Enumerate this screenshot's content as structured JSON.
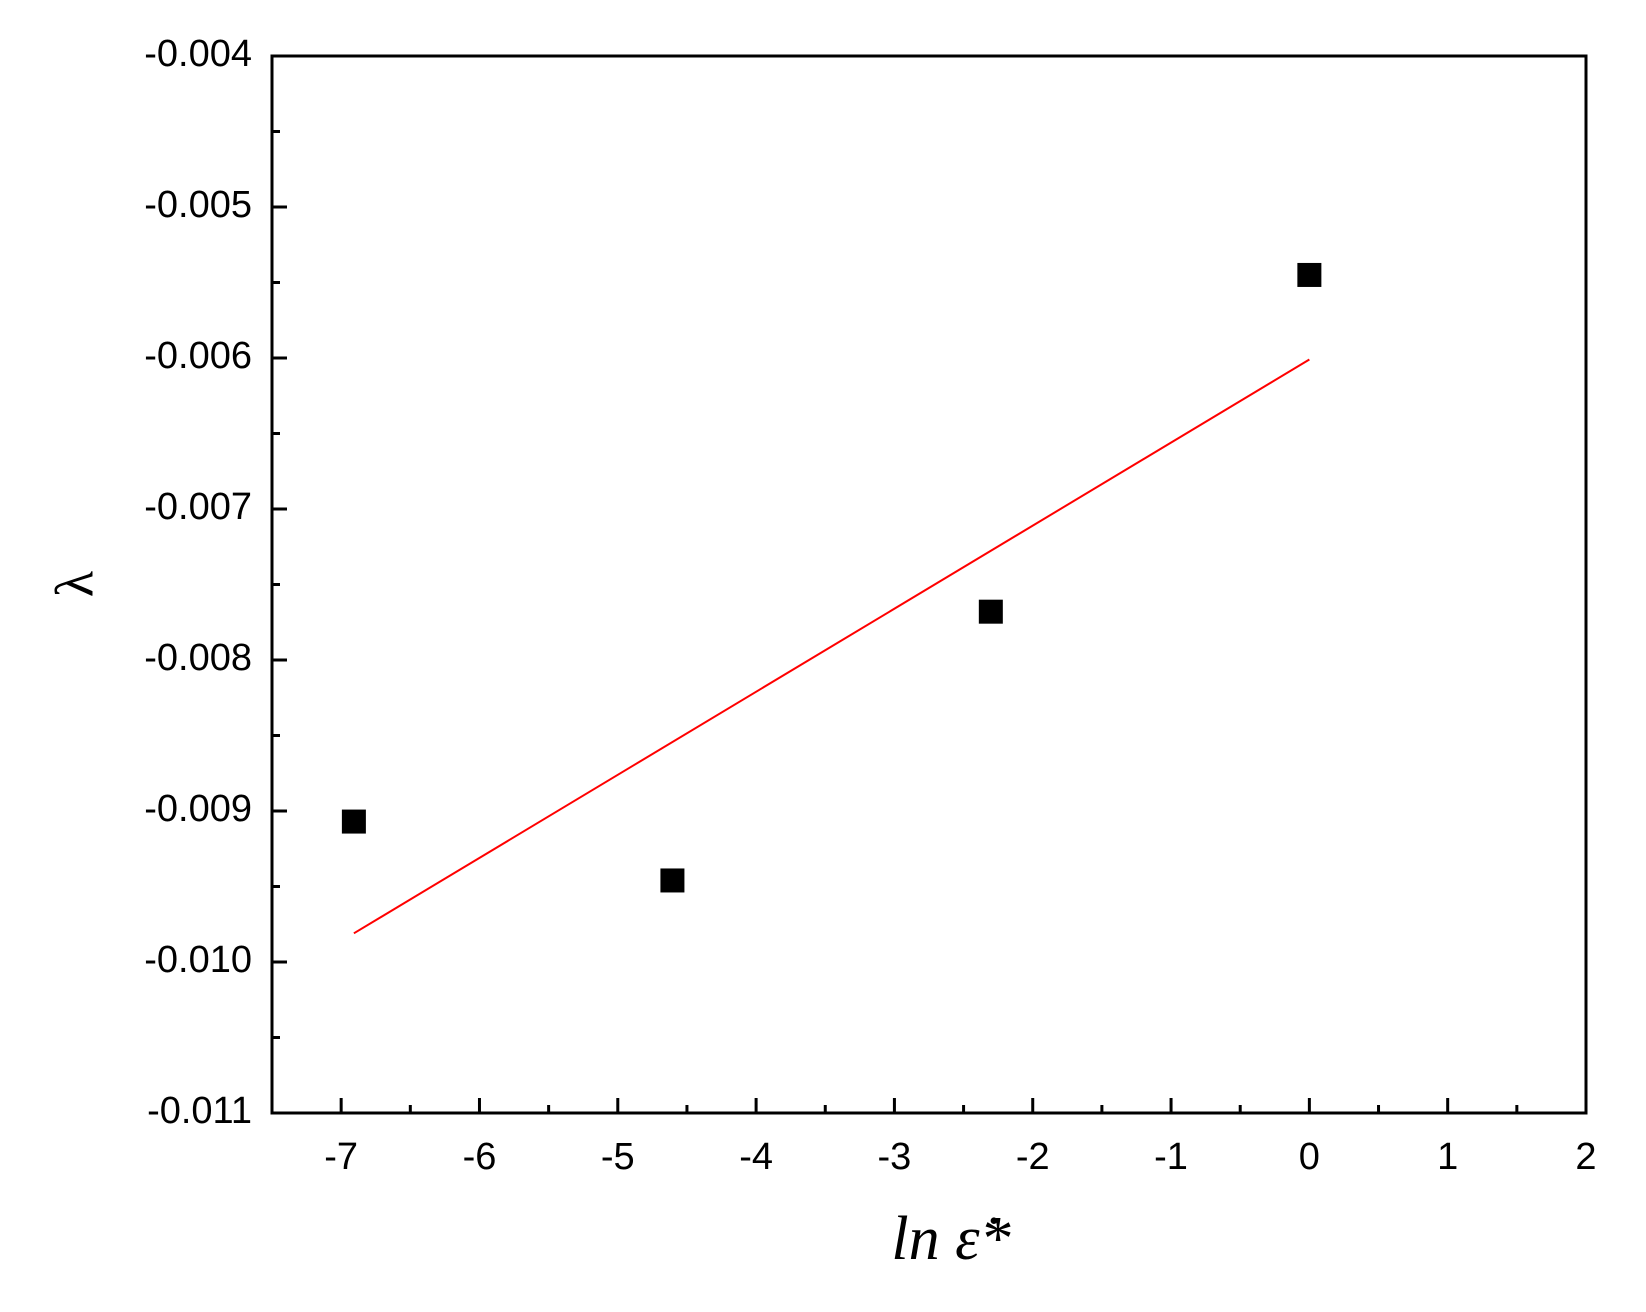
{
  "chart_data": {
    "type": "scatter",
    "xlabel": "ln ε̇*",
    "ylabel": "λ",
    "xlim": [
      -7.5,
      2
    ],
    "xticks": [
      -7,
      -6,
      -5,
      -4,
      -3,
      -2,
      -1,
      0,
      1,
      2
    ],
    "ylim": [
      -0.011,
      -0.004
    ],
    "yticks": [
      -0.011,
      {
        "value": -0.01,
        "label": "-0.010"
      },
      -0.009,
      -0.008,
      -0.007,
      -0.006,
      -0.005,
      -0.004
    ],
    "minor_ticks": true,
    "series": [
      {
        "type": "scatter",
        "color": "#000000",
        "x": [
          -6.908,
          -4.605,
          -2.303,
          0
        ],
        "values": [
          -0.00907,
          -0.00946,
          -0.00768,
          -0.00545
        ]
      },
      {
        "type": "line",
        "color": "#ff0000",
        "x": [
          -6.908,
          0
        ],
        "values": [
          -0.00981,
          -0.00601
        ]
      }
    ]
  }
}
